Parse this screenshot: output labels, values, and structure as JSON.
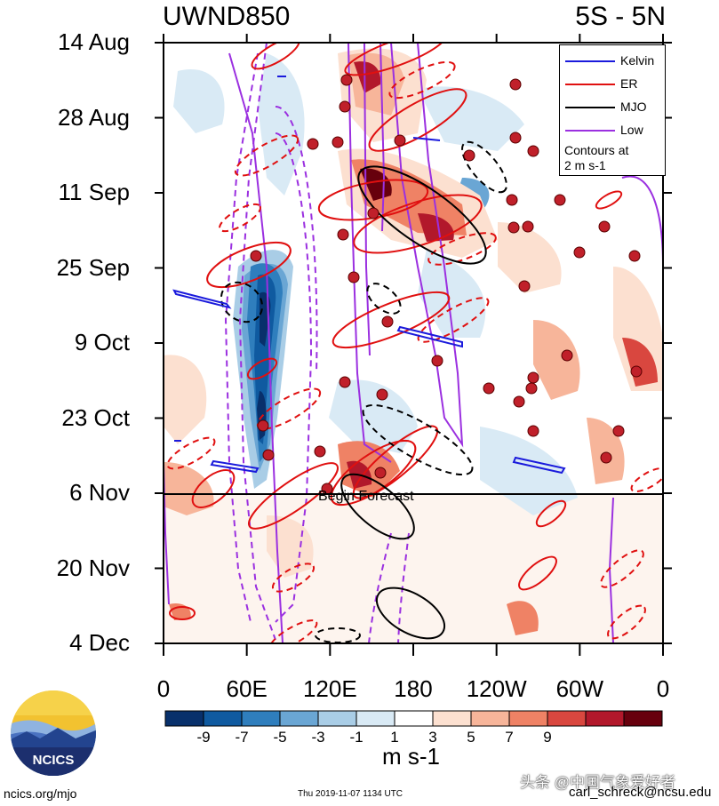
{
  "header": {
    "variable": "UWND850",
    "latitude_band": "5S - 5N"
  },
  "chart_data": {
    "type": "heatmap",
    "title": "UWND850",
    "subtitle": "5S - 5N",
    "x_ticks": [
      "0",
      "60E",
      "120E",
      "180",
      "120W",
      "60W",
      "0"
    ],
    "y_ticks": [
      "14 Aug",
      "28 Aug",
      "11 Sep",
      "25 Sep",
      "9 Oct",
      "23 Oct",
      "6 Nov",
      "20 Nov",
      "4 Dec"
    ],
    "colorbar": {
      "labels": [
        "-9",
        "-7",
        "-5",
        "-3",
        "-1",
        "1",
        "3",
        "5",
        "7",
        "9"
      ],
      "colors": [
        "#08306b",
        "#0f5aa0",
        "#2f7ebd",
        "#6aa6d4",
        "#a9cde6",
        "#d9eaf5",
        "#ffffff",
        "#fce0d0",
        "#f7b59a",
        "#ef8265",
        "#d9473f",
        "#b2182b",
        "#67000d"
      ],
      "units": "m s-1"
    },
    "legend": [
      {
        "label": "Kelvin",
        "color": "#1a1adc"
      },
      {
        "label": "ER",
        "color": "#e01010"
      },
      {
        "label": "MJO",
        "color": "#000000"
      },
      {
        "label": "Low",
        "color": "#9b30e0"
      }
    ],
    "legend_note": [
      "Contours at",
      "2 m s-1"
    ],
    "annotation": "Begin Forecast",
    "forecast_start": "6 Nov"
  },
  "footer": {
    "logo_text": "NCICS",
    "site": "ncics.org/mjo",
    "timestamp": "Thu 2019-11-07 1134 UTC",
    "author": "carl_schreck@ncsu.edu",
    "watermark": "头条 @中国气象爱好者"
  }
}
